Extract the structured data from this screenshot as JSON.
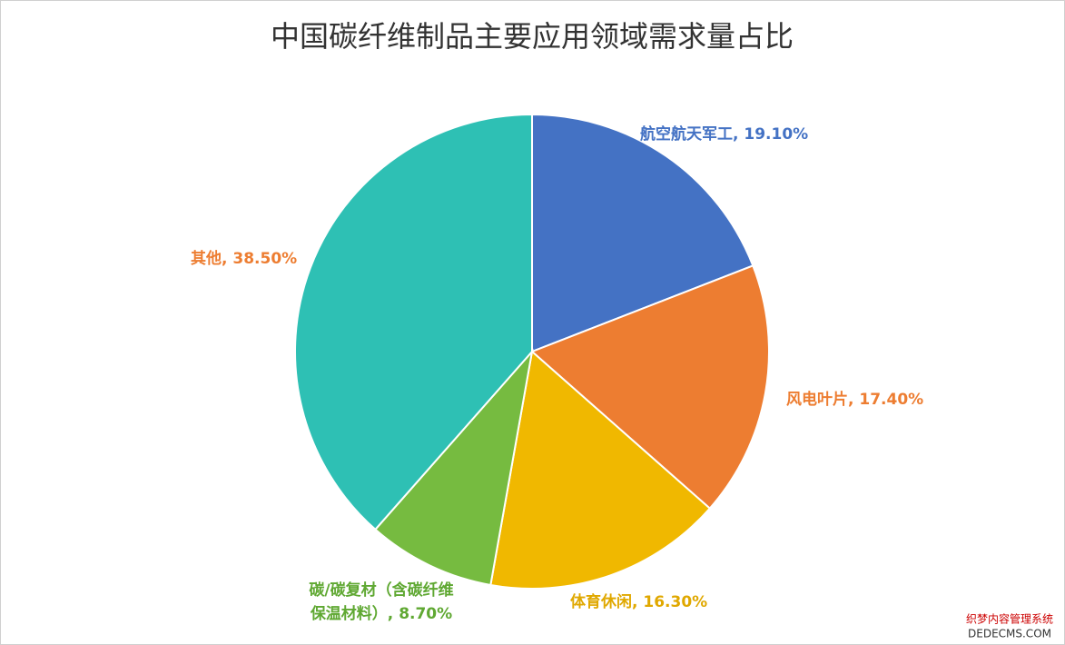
{
  "chart_data": {
    "type": "pie",
    "title": "中国碳纤维制品主要应用领域需求量占比",
    "values": [
      19.1,
      17.4,
      16.3,
      8.7,
      38.5
    ],
    "value_labels": [
      "航空航天军工, 19.10%",
      "风电叶片, 17.40%",
      "体育休闲, 16.30%",
      "碳/碳复材（含碳纤维\n保温材料）, 8.70%",
      "其他, 38.50%"
    ],
    "colors": [
      "#4472c4",
      "#ed7d31",
      "#f0b800",
      "#76bb40",
      "#2ec0b4"
    ],
    "label_colors": [
      "#4472c4",
      "#ed7d31",
      "#e0a800",
      "#5fa832",
      "#ed7d31"
    ]
  },
  "watermark": {
    "line1": "织梦内容管理系统",
    "line2": "DEDECMS.COM"
  }
}
